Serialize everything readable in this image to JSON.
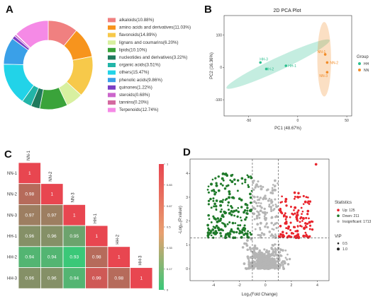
{
  "panels": {
    "a": {
      "letter": "A"
    },
    "b": {
      "letter": "B",
      "title": "2D PCA Plot"
    },
    "c": {
      "letter": "C"
    },
    "d": {
      "letter": "D"
    }
  },
  "chart_data": [
    {
      "type": "pie",
      "donut": true,
      "legend_position": "right",
      "slices": [
        {
          "label": "alkaloids(10.88%)",
          "value": 10.88,
          "color": "#f08080"
        },
        {
          "label": "amino acids and derivatives(11.03%)",
          "value": 11.03,
          "color": "#f7941d"
        },
        {
          "label": "flavonoids(14.89%)",
          "value": 14.89,
          "color": "#f7c94a"
        },
        {
          "label": "lignans and coumarins(6.20%)",
          "value": 6.2,
          "color": "#d8f0a0"
        },
        {
          "label": "lipids(10.10%)",
          "value": 10.1,
          "color": "#3aa33a"
        },
        {
          "label": "nucleotides and derivatives(3.22%)",
          "value": 3.22,
          "color": "#1f7a5c"
        },
        {
          "label": "organic acids(3.51%)",
          "value": 3.51,
          "color": "#22b5a8"
        },
        {
          "label": "others(15.47%)",
          "value": 15.47,
          "color": "#22d3e8"
        },
        {
          "label": "phenolic acids(9.86%)",
          "value": 9.86,
          "color": "#3aa0e8"
        },
        {
          "label": "quinones(1.22%)",
          "value": 1.22,
          "color": "#7b3fc4"
        },
        {
          "label": "steroids(0.68%)",
          "value": 0.68,
          "color": "#cc66cc"
        },
        {
          "label": "tannins(0.20%)",
          "value": 0.2,
          "color": "#d46aa0"
        },
        {
          "label": "Terpenoids(12.74%)",
          "value": 12.74,
          "color": "#f58ae6"
        }
      ]
    },
    {
      "type": "scatter",
      "title": "2D PCA Plot",
      "xlabel": "PC1 (48.67%)",
      "ylabel": "PC2 (16.36%)",
      "xlim": [
        -75,
        55
      ],
      "ylim": [
        -150,
        160
      ],
      "xticks": [
        "-50",
        "0",
        "50"
      ],
      "yticks": [
        "-100",
        "0",
        "100"
      ],
      "legend_title": "Group",
      "series": [
        {
          "name": "HH",
          "color": "#2bbf8e",
          "points": [
            {
              "label": "HH-3",
              "x": -38,
              "y": 15
            },
            {
              "label": "HH-2",
              "x": -32,
              "y": -5
            },
            {
              "label": "HH-1",
              "x": -12,
              "y": 5
            }
          ]
        },
        {
          "name": "NN",
          "color": "#f28c28",
          "points": [
            {
              "label": "NN-1",
              "x": 28,
              "y": 40
            },
            {
              "label": "NN-2",
              "x": 30,
              "y": 15
            },
            {
              "label": "NN-3",
              "x": 30,
              "y": -15
            }
          ]
        }
      ],
      "ellipses": [
        {
          "group": "HH",
          "cx": -20,
          "cy": 10,
          "rx": 58,
          "ry": 20,
          "angle_deg": 25
        },
        {
          "group": "NN",
          "cx": 27,
          "cy": 25,
          "rx": 7,
          "ry": 115,
          "angle_deg": 0
        }
      ]
    },
    {
      "type": "heatmap",
      "triangle": "lower",
      "labels": [
        "NN-1",
        "NN-2",
        "NN-3",
        "HH-1",
        "HH-2",
        "HH-3"
      ],
      "matrix": [
        [
          "1"
        ],
        [
          "0.98",
          "1"
        ],
        [
          "0.97",
          "0.97",
          "1"
        ],
        [
          "0.96",
          "0.96",
          "0.95",
          "1"
        ],
        [
          "0.94",
          "0.94",
          "0.93",
          "0.98",
          "1"
        ],
        [
          "0.96",
          "0.96",
          "0.94",
          "0.99",
          "0.98",
          "1"
        ]
      ],
      "colorbar_ticks": [
        "1",
        "0.83",
        "0.67",
        "0.5",
        "0.33",
        "0.17",
        "0"
      ]
    },
    {
      "type": "scatter",
      "subtype": "volcano",
      "xlabel": "Log₂(Fold Change)",
      "ylabel": "-Log₁₀(P.value)",
      "xlim": [
        -5.8,
        4.9
      ],
      "ylim": [
        -0.5,
        4.6
      ],
      "xticks": [
        "-4",
        "-2",
        "0",
        "2",
        "4"
      ],
      "yticks": [
        "0",
        "1",
        "2",
        "3",
        "4"
      ],
      "legend_title": "Statistics",
      "categories": [
        {
          "label": "Up: 125",
          "color": "#e8242c"
        },
        {
          "label": "Down: 211",
          "color": "#1f7a2a"
        },
        {
          "label": "Insignificant: 1713",
          "color": "#b5b5b5"
        }
      ],
      "vip_legend_title": "VIP",
      "vip_sizes": [
        "0.5",
        "1.0"
      ]
    }
  ]
}
